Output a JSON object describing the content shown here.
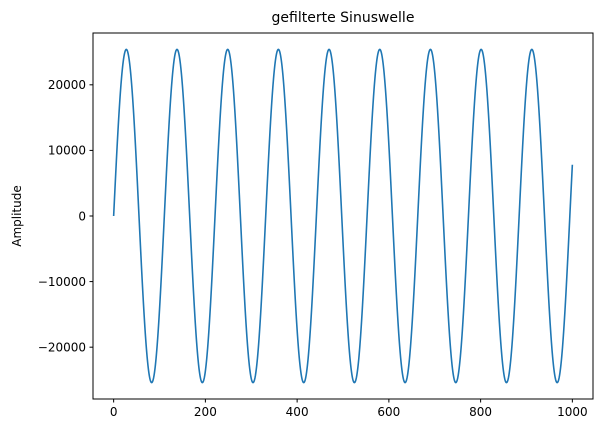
{
  "chart_data": {
    "type": "line",
    "title": "gefilterte Sinuswelle",
    "xlabel": "",
    "ylabel": "Amplitude",
    "xlim": [
      -45,
      1045
    ],
    "ylim": [
      -27900,
      27900
    ],
    "x_ticks": [
      0,
      200,
      400,
      600,
      800,
      1000
    ],
    "x_tick_labels": [
      "0",
      "200",
      "400",
      "600",
      "800",
      "1000"
    ],
    "y_ticks": [
      -20000,
      -10000,
      0,
      10000,
      20000
    ],
    "y_tick_labels": [
      "−20000",
      "−10000",
      "0",
      "10000",
      "20000"
    ],
    "grid": false,
    "color": "#1f77b4",
    "series": [
      {
        "amplitude": 25400,
        "period": 110.5,
        "x_start": 0,
        "x_end": 1000
      }
    ]
  }
}
